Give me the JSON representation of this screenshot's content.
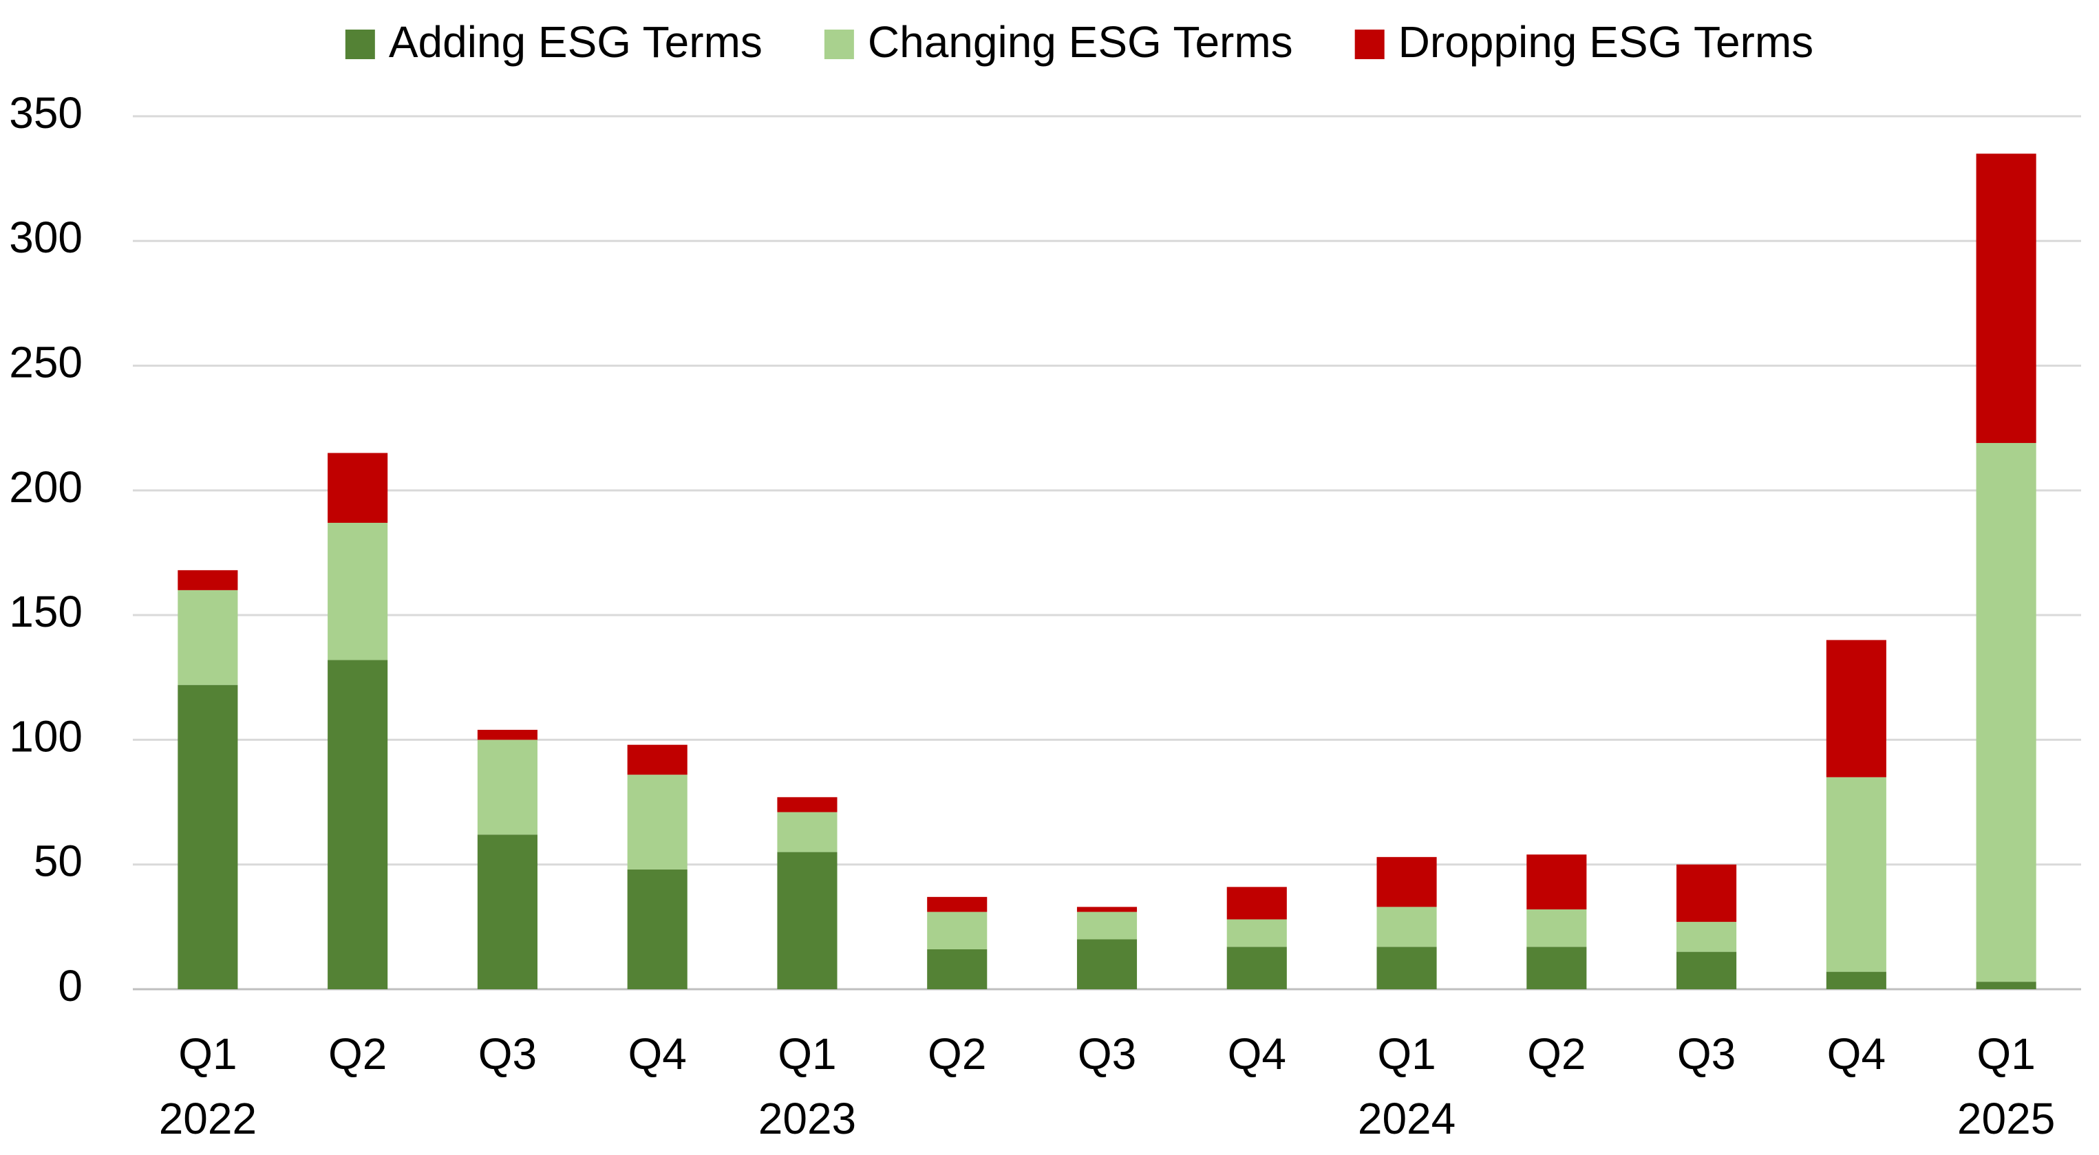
{
  "chart_data": {
    "type": "stacked-bar",
    "categories": [
      "Q1",
      "Q2",
      "Q3",
      "Q4",
      "Q1",
      "Q2",
      "Q3",
      "Q4",
      "Q1",
      "Q2",
      "Q3",
      "Q4",
      "Q1"
    ],
    "category_years": [
      "2022",
      null,
      null,
      null,
      "2023",
      null,
      null,
      null,
      "2024",
      null,
      null,
      null,
      "2025"
    ],
    "series": [
      {
        "name": "Adding ESG Terms",
        "color": "#548235",
        "values": [
          122,
          132,
          62,
          48,
          55,
          16,
          20,
          17,
          17,
          17,
          15,
          7,
          3
        ]
      },
      {
        "name": "Changing ESG Terms",
        "color": "#a9d18e",
        "values": [
          38,
          55,
          38,
          38,
          16,
          15,
          11,
          11,
          16,
          15,
          12,
          78,
          216
        ]
      },
      {
        "name": "Dropping ESG Terms",
        "color": "#c00000",
        "values": [
          8,
          28,
          4,
          12,
          6,
          6,
          2,
          13,
          20,
          22,
          23,
          55,
          116
        ]
      }
    ],
    "ylim": [
      0,
      350
    ],
    "yticks": [
      0,
      50,
      100,
      150,
      200,
      250,
      300,
      350
    ],
    "grid": true,
    "legend": "top"
  }
}
